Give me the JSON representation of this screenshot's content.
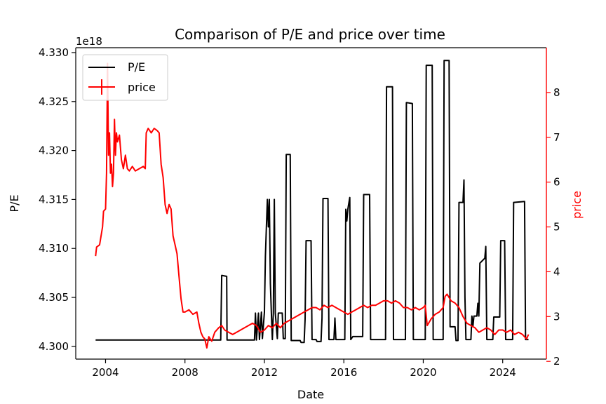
{
  "chart_data": {
    "type": "line",
    "title": "Comparison of P/E and price over time",
    "xlabel": "Date",
    "ylabel_left": "P/E",
    "ylabel_right": "price",
    "left_offset_label": "1e18",
    "xlim": [
      2002.5,
      2026.2
    ],
    "ylim_left": [
      4.2987,
      4.3305
    ],
    "ylim_right": [
      2.05,
      9.0
    ],
    "x_ticks": [
      "2004",
      "2008",
      "2012",
      "2016",
      "2020",
      "2024"
    ],
    "left_ticks": [
      "4.300",
      "4.305",
      "4.310",
      "4.315",
      "4.320",
      "4.325",
      "4.330"
    ],
    "right_ticks": [
      "2",
      "3",
      "4",
      "5",
      "6",
      "7",
      "8"
    ],
    "legend_position": "upper left",
    "colors": {
      "pe": "#000000",
      "price": "#ff0000"
    },
    "series": [
      {
        "name": "P/E",
        "axis": "left",
        "color": "#000000",
        "points": [
          [
            2003.5,
            4.30065
          ],
          [
            2009.8,
            4.30065
          ],
          [
            2009.85,
            4.30725
          ],
          [
            2010.1,
            4.30715
          ],
          [
            2010.12,
            4.30065
          ],
          [
            2011.5,
            4.30065
          ],
          [
            2011.55,
            4.3034
          ],
          [
            2011.6,
            4.30065
          ],
          [
            2011.7,
            4.3034
          ],
          [
            2011.75,
            4.3007
          ],
          [
            2011.85,
            4.3035
          ],
          [
            2011.9,
            4.3008
          ],
          [
            2012.0,
            4.3035
          ],
          [
            2012.05,
            4.3092
          ],
          [
            2012.1,
            4.3122
          ],
          [
            2012.15,
            4.315
          ],
          [
            2012.2,
            4.3122
          ],
          [
            2012.25,
            4.315
          ],
          [
            2012.3,
            4.3064
          ],
          [
            2012.35,
            4.3034
          ],
          [
            2012.4,
            4.3007
          ],
          [
            2012.45,
            4.3034
          ],
          [
            2012.5,
            4.315
          ],
          [
            2012.55,
            4.3034
          ],
          [
            2012.65,
            4.3008
          ],
          [
            2012.7,
            4.3034
          ],
          [
            2012.9,
            4.3034
          ],
          [
            2012.95,
            4.3008
          ],
          [
            2013.05,
            4.3008
          ],
          [
            2013.1,
            4.3196
          ],
          [
            2013.3,
            4.3196
          ],
          [
            2013.35,
            4.3006
          ],
          [
            2013.8,
            4.3006
          ],
          [
            2013.85,
            4.3004
          ],
          [
            2014.0,
            4.3004
          ],
          [
            2014.05,
            4.3028
          ],
          [
            2014.1,
            4.3108
          ],
          [
            2014.35,
            4.3108
          ],
          [
            2014.4,
            4.3007
          ],
          [
            2014.6,
            4.3007
          ],
          [
            2014.65,
            4.3005
          ],
          [
            2014.85,
            4.3005
          ],
          [
            2014.9,
            4.3029
          ],
          [
            2014.95,
            4.3151
          ],
          [
            2015.2,
            4.3151
          ],
          [
            2015.25,
            4.3007
          ],
          [
            2015.5,
            4.3007
          ],
          [
            2015.55,
            4.3029
          ],
          [
            2015.6,
            4.3007
          ],
          [
            2016.05,
            4.3007
          ],
          [
            2016.1,
            4.314
          ],
          [
            2016.15,
            4.3128
          ],
          [
            2016.2,
            4.314
          ],
          [
            2016.3,
            4.3152
          ],
          [
            2016.35,
            4.3007
          ],
          [
            2016.45,
            4.301
          ],
          [
            2016.95,
            4.301
          ],
          [
            2017.0,
            4.3155
          ],
          [
            2017.3,
            4.3155
          ],
          [
            2017.35,
            4.3007
          ],
          [
            2018.1,
            4.3007
          ],
          [
            2018.15,
            4.3265
          ],
          [
            2018.45,
            4.3265
          ],
          [
            2018.5,
            4.3007
          ],
          [
            2019.1,
            4.3007
          ],
          [
            2019.15,
            4.3249
          ],
          [
            2019.45,
            4.3248
          ],
          [
            2019.5,
            4.3007
          ],
          [
            2020.1,
            4.3007
          ],
          [
            2020.15,
            4.3287
          ],
          [
            2020.45,
            4.3287
          ],
          [
            2020.5,
            4.3007
          ],
          [
            2021.0,
            4.3007
          ],
          [
            2021.05,
            4.3292
          ],
          [
            2021.3,
            4.3292
          ],
          [
            2021.35,
            4.302
          ],
          [
            2021.6,
            4.302
          ],
          [
            2021.65,
            4.3006
          ],
          [
            2021.75,
            4.3006
          ],
          [
            2021.8,
            4.3147
          ],
          [
            2022.0,
            4.3147
          ],
          [
            2022.05,
            4.317
          ],
          [
            2022.1,
            4.305
          ],
          [
            2022.15,
            4.3007
          ],
          [
            2022.4,
            4.3007
          ],
          [
            2022.45,
            4.3031
          ],
          [
            2022.5,
            4.302
          ],
          [
            2022.55,
            4.3031
          ],
          [
            2022.7,
            4.3031
          ],
          [
            2022.75,
            4.3044
          ],
          [
            2022.8,
            4.3031
          ],
          [
            2022.85,
            4.3085
          ],
          [
            2023.1,
            4.309
          ],
          [
            2023.15,
            4.3102
          ],
          [
            2023.2,
            4.3007
          ],
          [
            2023.5,
            4.3007
          ],
          [
            2023.55,
            4.303
          ],
          [
            2023.8,
            4.303
          ],
          [
            2023.85,
            4.303
          ],
          [
            2023.9,
            4.3108
          ],
          [
            2024.1,
            4.3108
          ],
          [
            2024.15,
            4.3007
          ],
          [
            2024.5,
            4.3007
          ],
          [
            2024.55,
            4.3147
          ],
          [
            2025.1,
            4.3148
          ],
          [
            2025.15,
            4.3007
          ],
          [
            2025.3,
            4.3007
          ]
        ]
      },
      {
        "name": "price",
        "axis": "right",
        "color": "#ff0000",
        "points": [
          [
            2003.5,
            4.35
          ],
          [
            2003.55,
            4.55
          ],
          [
            2003.7,
            4.6
          ],
          [
            2003.85,
            5.0
          ],
          [
            2003.9,
            5.35
          ],
          [
            2004.0,
            5.4
          ],
          [
            2004.05,
            6.2
          ],
          [
            2004.1,
            8.65
          ],
          [
            2004.15,
            6.6
          ],
          [
            2004.2,
            7.1
          ],
          [
            2004.25,
            6.2
          ],
          [
            2004.3,
            6.4
          ],
          [
            2004.35,
            5.9
          ],
          [
            2004.4,
            6.2
          ],
          [
            2004.45,
            7.4
          ],
          [
            2004.5,
            6.6
          ],
          [
            2004.55,
            7.1
          ],
          [
            2004.6,
            6.9
          ],
          [
            2004.7,
            7.05
          ],
          [
            2004.8,
            6.5
          ],
          [
            2004.9,
            6.3
          ],
          [
            2005.0,
            6.6
          ],
          [
            2005.1,
            6.3
          ],
          [
            2005.2,
            6.25
          ],
          [
            2005.35,
            6.35
          ],
          [
            2005.5,
            6.25
          ],
          [
            2005.7,
            6.3
          ],
          [
            2005.9,
            6.35
          ],
          [
            2006.0,
            6.3
          ],
          [
            2006.05,
            7.1
          ],
          [
            2006.15,
            7.2
          ],
          [
            2006.3,
            7.1
          ],
          [
            2006.45,
            7.2
          ],
          [
            2006.6,
            7.15
          ],
          [
            2006.7,
            7.1
          ],
          [
            2006.8,
            6.4
          ],
          [
            2006.9,
            6.1
          ],
          [
            2007.0,
            5.5
          ],
          [
            2007.1,
            5.3
          ],
          [
            2007.2,
            5.5
          ],
          [
            2007.3,
            5.4
          ],
          [
            2007.4,
            4.8
          ],
          [
            2007.5,
            4.6
          ],
          [
            2007.6,
            4.4
          ],
          [
            2007.7,
            3.9
          ],
          [
            2007.8,
            3.4
          ],
          [
            2007.9,
            3.1
          ],
          [
            2008.0,
            3.1
          ],
          [
            2008.2,
            3.15
          ],
          [
            2008.4,
            3.05
          ],
          [
            2008.6,
            3.1
          ],
          [
            2008.7,
            2.85
          ],
          [
            2008.8,
            2.65
          ],
          [
            2008.9,
            2.55
          ],
          [
            2009.0,
            2.5
          ],
          [
            2009.1,
            2.3
          ],
          [
            2009.2,
            2.55
          ],
          [
            2009.35,
            2.45
          ],
          [
            2009.5,
            2.65
          ],
          [
            2009.7,
            2.75
          ],
          [
            2009.85,
            2.8
          ],
          [
            2010.0,
            2.7
          ],
          [
            2010.2,
            2.65
          ],
          [
            2010.4,
            2.6
          ],
          [
            2010.6,
            2.65
          ],
          [
            2010.8,
            2.7
          ],
          [
            2011.0,
            2.75
          ],
          [
            2011.2,
            2.8
          ],
          [
            2011.4,
            2.85
          ],
          [
            2011.6,
            2.8
          ],
          [
            2011.8,
            2.65
          ],
          [
            2012.0,
            2.7
          ],
          [
            2012.2,
            2.8
          ],
          [
            2012.4,
            2.75
          ],
          [
            2012.6,
            2.85
          ],
          [
            2012.8,
            2.75
          ],
          [
            2013.0,
            2.85
          ],
          [
            2013.2,
            2.9
          ],
          [
            2013.4,
            2.95
          ],
          [
            2013.6,
            3.0
          ],
          [
            2013.8,
            3.05
          ],
          [
            2014.0,
            3.1
          ],
          [
            2014.2,
            3.15
          ],
          [
            2014.4,
            3.2
          ],
          [
            2014.6,
            3.2
          ],
          [
            2014.8,
            3.15
          ],
          [
            2015.0,
            3.25
          ],
          [
            2015.2,
            3.2
          ],
          [
            2015.4,
            3.25
          ],
          [
            2015.6,
            3.2
          ],
          [
            2015.8,
            3.15
          ],
          [
            2016.0,
            3.1
          ],
          [
            2016.2,
            3.05
          ],
          [
            2016.4,
            3.1
          ],
          [
            2016.6,
            3.15
          ],
          [
            2016.8,
            3.2
          ],
          [
            2017.0,
            3.25
          ],
          [
            2017.2,
            3.2
          ],
          [
            2017.4,
            3.25
          ],
          [
            2017.6,
            3.25
          ],
          [
            2017.8,
            3.3
          ],
          [
            2018.0,
            3.35
          ],
          [
            2018.2,
            3.35
          ],
          [
            2018.4,
            3.3
          ],
          [
            2018.6,
            3.35
          ],
          [
            2018.8,
            3.3
          ],
          [
            2019.0,
            3.2
          ],
          [
            2019.2,
            3.2
          ],
          [
            2019.4,
            3.15
          ],
          [
            2019.6,
            3.2
          ],
          [
            2019.8,
            3.15
          ],
          [
            2020.0,
            3.2
          ],
          [
            2020.1,
            3.25
          ],
          [
            2020.2,
            2.8
          ],
          [
            2020.4,
            2.95
          ],
          [
            2020.6,
            3.05
          ],
          [
            2020.8,
            3.1
          ],
          [
            2021.0,
            3.2
          ],
          [
            2021.1,
            3.45
          ],
          [
            2021.2,
            3.5
          ],
          [
            2021.4,
            3.35
          ],
          [
            2021.6,
            3.3
          ],
          [
            2021.8,
            3.2
          ],
          [
            2022.0,
            3.0
          ],
          [
            2022.2,
            2.85
          ],
          [
            2022.4,
            2.8
          ],
          [
            2022.6,
            2.75
          ],
          [
            2022.8,
            2.65
          ],
          [
            2023.0,
            2.7
          ],
          [
            2023.2,
            2.75
          ],
          [
            2023.4,
            2.7
          ],
          [
            2023.6,
            2.6
          ],
          [
            2023.8,
            2.7
          ],
          [
            2024.0,
            2.7
          ],
          [
            2024.2,
            2.65
          ],
          [
            2024.4,
            2.7
          ],
          [
            2024.6,
            2.6
          ],
          [
            2024.8,
            2.65
          ],
          [
            2025.0,
            2.6
          ],
          [
            2025.2,
            2.5
          ],
          [
            2025.3,
            2.6
          ]
        ]
      }
    ]
  }
}
